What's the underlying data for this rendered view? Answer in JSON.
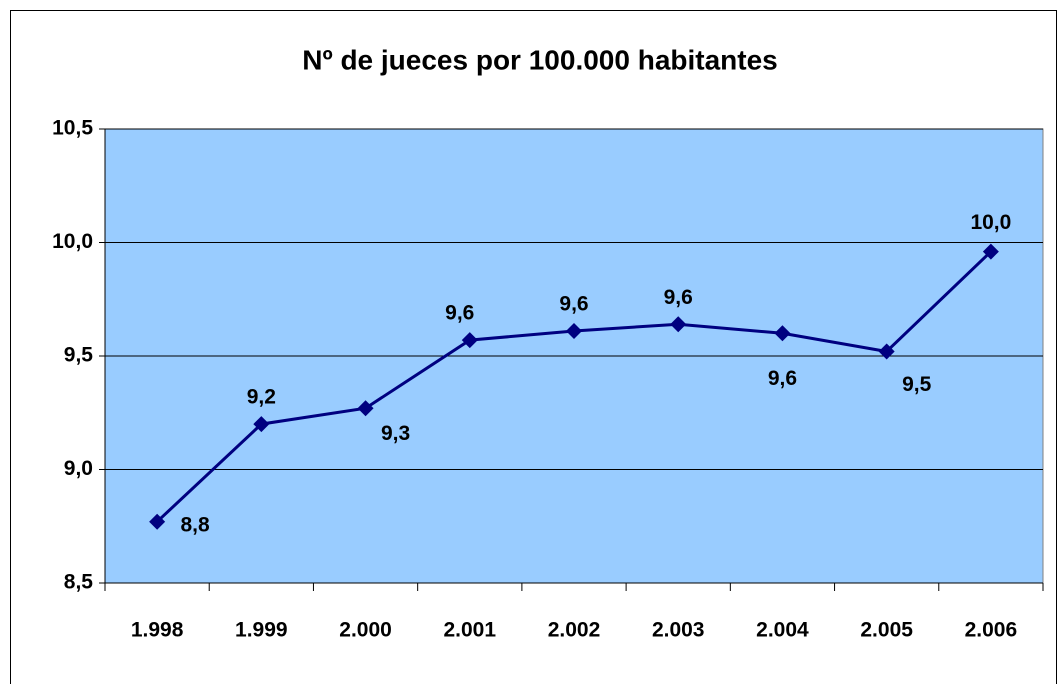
{
  "chart_data": {
    "type": "line",
    "title": "Nº de jueces por 100.000 habitantes",
    "categories": [
      "1.998",
      "1.999",
      "2.000",
      "2.001",
      "2.002",
      "2.003",
      "2.004",
      "2.005",
      "2.006"
    ],
    "series": [
      {
        "name": "Nº de jueces por 100.000 habitantes",
        "color": "#000080",
        "values": [
          8.77,
          9.2,
          9.27,
          9.57,
          9.61,
          9.64,
          9.6,
          9.52,
          9.96
        ],
        "value_labels": [
          "8,8",
          "9,2",
          "9,3",
          "9,6",
          "9,6",
          "9,6",
          "9,6",
          "9,5",
          "10,0"
        ]
      }
    ],
    "ylim": [
      8.5,
      10.5
    ],
    "yticks": [
      {
        "value": 8.5,
        "label": "8,5"
      },
      {
        "value": 9.0,
        "label": "9,0"
      },
      {
        "value": 9.5,
        "label": "9,5"
      },
      {
        "value": 10.0,
        "label": "10,0"
      },
      {
        "value": 10.5,
        "label": "10,5"
      }
    ],
    "grid": true,
    "plot_background": "#99ccff"
  }
}
